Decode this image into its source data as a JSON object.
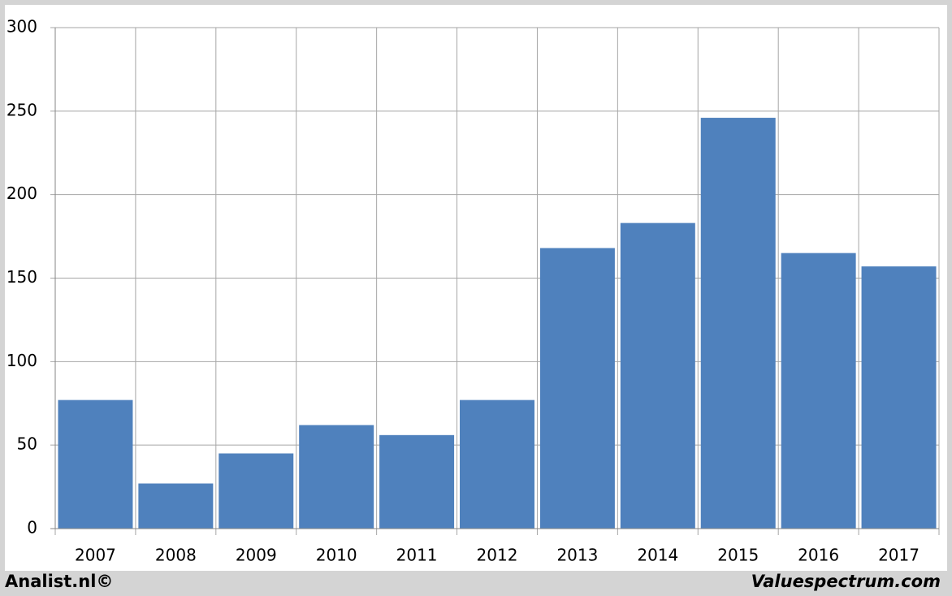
{
  "chart_data": {
    "type": "bar",
    "categories": [
      "2007",
      "2008",
      "2009",
      "2010",
      "2011",
      "2012",
      "2013",
      "2014",
      "2015",
      "2016",
      "2017"
    ],
    "values": [
      77,
      27,
      45,
      62,
      56,
      77,
      168,
      183,
      246,
      165,
      157
    ],
    "color": "#4f81bd",
    "ylim": [
      0,
      300
    ],
    "yticks": [
      0,
      50,
      100,
      150,
      200,
      250,
      300
    ],
    "grid": true,
    "footer_left": "Analist.nl©",
    "footer_right": "Valuespectrum.com"
  }
}
